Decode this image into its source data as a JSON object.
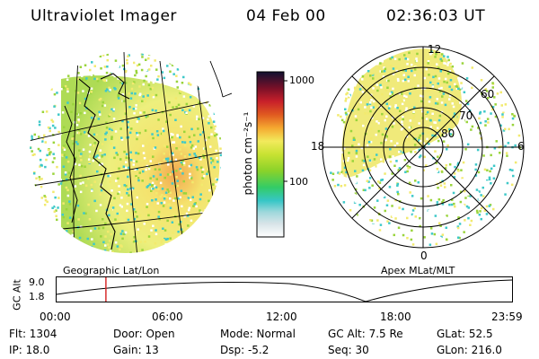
{
  "header": {
    "title": "Ultraviolet Imager",
    "date": "04 Feb 00",
    "time": "02:36:03 UT"
  },
  "left_panel": {
    "caption": "Geographic Lat/Lon"
  },
  "right_panel": {
    "caption": "Apex MLat/MLT",
    "mlt_labels": [
      "12",
      "18",
      "6",
      "0"
    ],
    "lat_labels": [
      "60",
      "70",
      "80"
    ]
  },
  "colorbar": {
    "unit_label": "photon cm⁻²s⁻¹",
    "ticks": [
      "1000",
      "100"
    ]
  },
  "altitude_plot": {
    "ylabel": "GC Alt",
    "yticks": [
      "9.0",
      "1.8"
    ],
    "xticks": [
      "00:00",
      "06:00",
      "12:00",
      "18:00",
      "23:59"
    ],
    "current_time_marker": "02:36"
  },
  "info": {
    "flt": "Flt: 1304",
    "door": "Door: Open",
    "mode": "Mode: Normal",
    "gc_alt": "GC Alt: 7.5 Re",
    "glat": "GLat:  52.5",
    "ip": "IP: 18.0",
    "gain": "Gain: 13",
    "dsp": "Dsp:    -5.2",
    "seq": "Seq: 30",
    "glon": "GLon: 216.0"
  },
  "colors": {
    "aurora_yellow": "#f2ea6e",
    "aurora_green": "#9ad43c",
    "aurora_cyan": "#3ec9c9",
    "marker_red": "#d42020"
  }
}
